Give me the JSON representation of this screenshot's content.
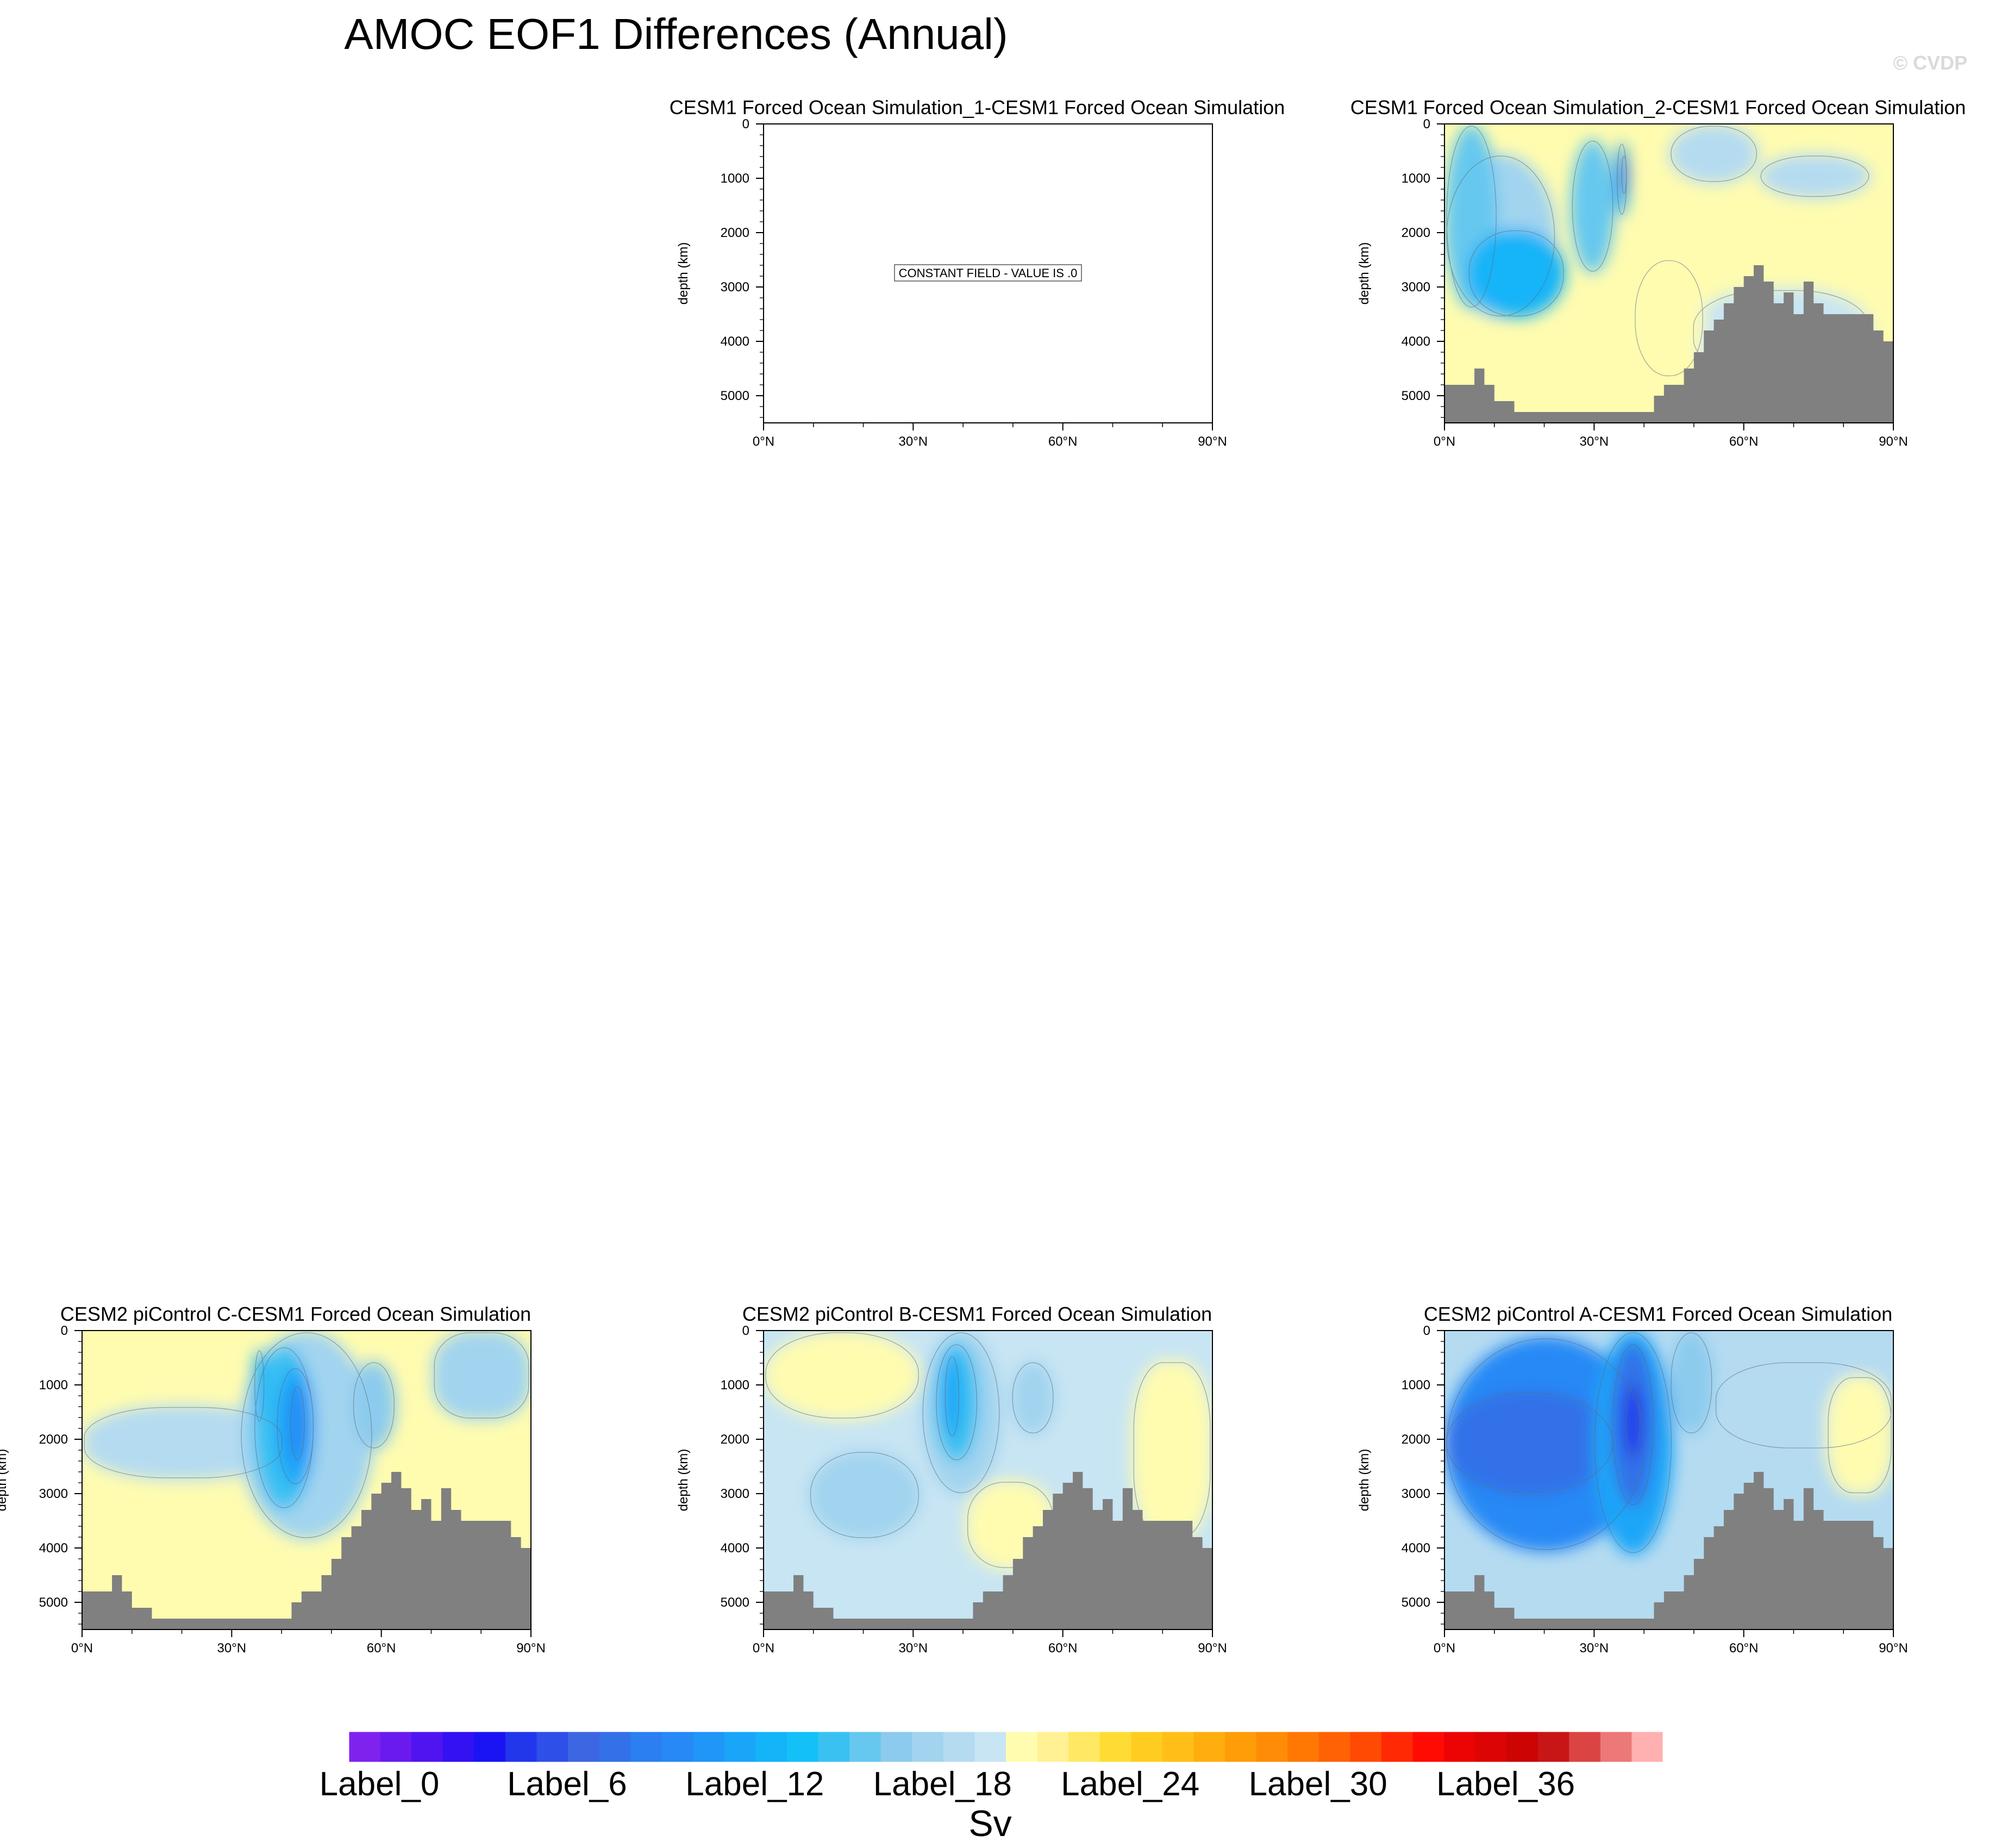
{
  "title": "AMOC EOF1 Differences (Annual)",
  "watermark": "© CVDP",
  "chart_data": {
    "type": "heatmap",
    "title": "AMOC EOF1 Differences (Annual)",
    "x_ticks": [
      "0°N",
      "30°N",
      "60°N",
      "90°N"
    ],
    "xlim": [
      0,
      90
    ],
    "ylabel": "depth (km)",
    "y_ticks": [
      0,
      1000,
      2000,
      3000,
      4000,
      5000
    ],
    "ylim": [
      5500,
      0
    ],
    "colorbar": {
      "unit": "Sv",
      "colors": [
        "#7f22ee",
        "#6a1aee",
        "#5014f0",
        "#3311f2",
        "#1a14f4",
        "#2236ec",
        "#2e4fe8",
        "#3d66e2",
        "#3371e8",
        "#2b7ff0",
        "#2689f5",
        "#1f96f8",
        "#1aa6f8",
        "#14b4f8",
        "#13c0f7",
        "#3ac1f2",
        "#66c8ef",
        "#8ccbed",
        "#a2d4ef",
        "#b5dbf1",
        "#c8e5f3",
        "#fffcb0",
        "#fff194",
        "#ffe864",
        "#ffdc34",
        "#ffcd20",
        "#ffbf16",
        "#ffae0e",
        "#ff9d08",
        "#ff8c06",
        "#ff7804",
        "#ff6204",
        "#ff4a04",
        "#ff2a04",
        "#ff0b04",
        "#ec0404",
        "#dc0404",
        "#cc0404",
        "#c81616",
        "#dc4444",
        "#ec7878",
        "#ffb0b0"
      ],
      "labels": [
        "Label_0",
        "Label_6",
        "Label_12",
        "Label_18",
        "Label_24",
        "Label_30",
        "Label_36"
      ],
      "label_positions": [
        0,
        6,
        12,
        18,
        24,
        30,
        36
      ]
    },
    "panels": [
      {
        "title": "CESM1 Forced Ocean Simulation_1-CESM1 Forced Ocean Simulation",
        "constant": true,
        "note": "CONSTANT FIELD - VALUE IS .0"
      },
      {
        "title": "CESM1 Forced Ocean Simulation_2-CESM1 Forced Ocean Simulation",
        "constant": false,
        "pattern": "p2"
      },
      {
        "title": "CESM2 piControl C-CESM1 Forced Ocean Simulation",
        "constant": false,
        "pattern": "pC"
      },
      {
        "title": "CESM2 piControl B-CESM1 Forced Ocean Simulation",
        "constant": false,
        "pattern": "pB"
      },
      {
        "title": "CESM2 piControl A-CESM1 Forced Ocean Simulation",
        "constant": false,
        "pattern": "pA"
      }
    ],
    "bathymetry": {
      "color": "#808080",
      "lat": [
        0,
        4,
        6,
        8,
        10,
        12,
        14,
        16,
        18,
        20,
        22,
        24,
        26,
        28,
        30,
        32,
        34,
        36,
        38,
        40,
        42,
        44,
        46,
        48,
        50,
        52,
        54,
        56,
        58,
        60,
        62,
        64,
        66,
        68,
        70,
        72,
        74,
        76,
        78,
        80,
        82,
        84,
        86,
        88,
        90
      ],
      "depth": [
        4800,
        4800,
        4500,
        4800,
        5100,
        5100,
        5300,
        5300,
        5300,
        5300,
        5300,
        5300,
        5300,
        5300,
        5300,
        5300,
        5300,
        5300,
        5300,
        5300,
        5000,
        4800,
        4800,
        4500,
        4200,
        3800,
        3600,
        3300,
        3000,
        2800,
        2600,
        2900,
        3300,
        3100,
        3500,
        2900,
        3300,
        3500,
        3500,
        3500,
        3500,
        3500,
        3800,
        4000,
        4000
      ]
    }
  }
}
